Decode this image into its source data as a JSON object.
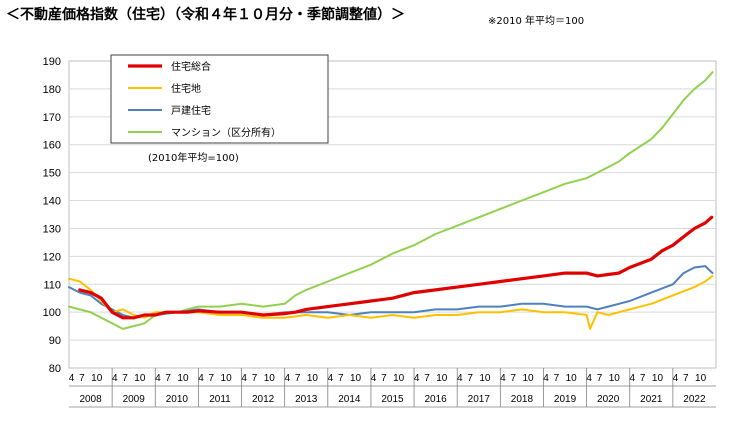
{
  "header": {
    "title": "＜不動産価格指数（住宅）（令和４年１０月分・季節調整値）＞",
    "note": "※2010 年平均＝100"
  },
  "chart_data": {
    "type": "line",
    "ylim": [
      80,
      190
    ],
    "yticks": [
      80,
      90,
      100,
      110,
      120,
      130,
      140,
      150,
      160,
      170,
      180,
      190
    ],
    "month_ticks": [
      "4",
      "7",
      "10"
    ],
    "first_year_month_ticks": [
      "4",
      "7",
      "10"
    ],
    "years": [
      "2008",
      "2009",
      "2010",
      "2011",
      "2012",
      "2013",
      "2014",
      "2015",
      "2016",
      "2017",
      "2018",
      "2019",
      "2020",
      "2021",
      "2022"
    ],
    "basis_note": "(2010年平均=100)",
    "grid": true,
    "legend_position": "top-left",
    "series": [
      {
        "name": "住宅総合",
        "color": "#e00000",
        "points": [
          [
            2008.25,
            108
          ],
          [
            2008.5,
            107
          ],
          [
            2008.75,
            105
          ],
          [
            2009.0,
            100
          ],
          [
            2009.25,
            98
          ],
          [
            2009.5,
            98
          ],
          [
            2009.75,
            99
          ],
          [
            2010.0,
            99
          ],
          [
            2010.25,
            100
          ],
          [
            2010.5,
            100
          ],
          [
            2010.75,
            100
          ],
          [
            2011.0,
            100.5
          ],
          [
            2011.5,
            100
          ],
          [
            2012.0,
            100
          ],
          [
            2012.5,
            99
          ],
          [
            2013.0,
            99.5
          ],
          [
            2013.25,
            100
          ],
          [
            2013.5,
            101
          ],
          [
            2014.0,
            102
          ],
          [
            2014.5,
            103
          ],
          [
            2015.0,
            104
          ],
          [
            2015.5,
            105
          ],
          [
            2016.0,
            107
          ],
          [
            2016.5,
            108
          ],
          [
            2017.0,
            109
          ],
          [
            2017.5,
            110
          ],
          [
            2018.0,
            111
          ],
          [
            2018.5,
            112
          ],
          [
            2019.0,
            113
          ],
          [
            2019.5,
            114
          ],
          [
            2020.0,
            114
          ],
          [
            2020.25,
            113
          ],
          [
            2020.5,
            113.5
          ],
          [
            2020.75,
            114
          ],
          [
            2021.0,
            116
          ],
          [
            2021.5,
            119
          ],
          [
            2021.75,
            122
          ],
          [
            2022.0,
            124
          ],
          [
            2022.25,
            127
          ],
          [
            2022.5,
            130
          ],
          [
            2022.75,
            132
          ],
          [
            2022.9,
            134
          ]
        ]
      },
      {
        "name": "住宅地",
        "color": "#ffc000",
        "points": [
          [
            2008.0,
            112
          ],
          [
            2008.25,
            111
          ],
          [
            2008.5,
            108
          ],
          [
            2008.75,
            104
          ],
          [
            2009.0,
            100
          ],
          [
            2009.25,
            101
          ],
          [
            2009.5,
            99
          ],
          [
            2009.75,
            98
          ],
          [
            2010.0,
            100
          ],
          [
            2010.5,
            100
          ],
          [
            2011.0,
            100
          ],
          [
            2011.5,
            99
          ],
          [
            2012.0,
            99
          ],
          [
            2012.5,
            98
          ],
          [
            2013.0,
            98
          ],
          [
            2013.5,
            99
          ],
          [
            2014.0,
            98
          ],
          [
            2014.5,
            99
          ],
          [
            2015.0,
            98
          ],
          [
            2015.5,
            99
          ],
          [
            2016.0,
            98
          ],
          [
            2016.5,
            99
          ],
          [
            2017.0,
            99
          ],
          [
            2017.5,
            100
          ],
          [
            2018.0,
            100
          ],
          [
            2018.5,
            101
          ],
          [
            2019.0,
            100
          ],
          [
            2019.5,
            100
          ],
          [
            2020.0,
            99
          ],
          [
            2020.08,
            94
          ],
          [
            2020.25,
            100
          ],
          [
            2020.5,
            99
          ],
          [
            2020.75,
            100
          ],
          [
            2021.0,
            101
          ],
          [
            2021.5,
            103
          ],
          [
            2022.0,
            106
          ],
          [
            2022.5,
            109
          ],
          [
            2022.75,
            111
          ],
          [
            2022.92,
            113
          ]
        ]
      },
      {
        "name": "戸建住宅",
        "color": "#4f81bd",
        "points": [
          [
            2008.0,
            109
          ],
          [
            2008.25,
            107
          ],
          [
            2008.5,
            106
          ],
          [
            2008.75,
            103
          ],
          [
            2009.0,
            101
          ],
          [
            2009.25,
            99
          ],
          [
            2009.5,
            98
          ],
          [
            2009.75,
            99
          ],
          [
            2010.0,
            99
          ],
          [
            2010.5,
            100
          ],
          [
            2011.0,
            101
          ],
          [
            2011.5,
            100
          ],
          [
            2012.0,
            100
          ],
          [
            2012.5,
            99
          ],
          [
            2013.0,
            100
          ],
          [
            2013.5,
            100
          ],
          [
            2014.0,
            100
          ],
          [
            2014.5,
            99
          ],
          [
            2015.0,
            100
          ],
          [
            2015.5,
            100
          ],
          [
            2016.0,
            100
          ],
          [
            2016.5,
            101
          ],
          [
            2017.0,
            101
          ],
          [
            2017.5,
            102
          ],
          [
            2018.0,
            102
          ],
          [
            2018.5,
            103
          ],
          [
            2019.0,
            103
          ],
          [
            2019.5,
            102
          ],
          [
            2020.0,
            102
          ],
          [
            2020.25,
            101
          ],
          [
            2020.5,
            102
          ],
          [
            2020.75,
            103
          ],
          [
            2021.0,
            104
          ],
          [
            2021.5,
            107
          ],
          [
            2022.0,
            110
          ],
          [
            2022.25,
            114
          ],
          [
            2022.5,
            116
          ],
          [
            2022.75,
            116.5
          ],
          [
            2022.92,
            114
          ]
        ]
      },
      {
        "name": "マンション（区分所有）",
        "color": "#92d050",
        "points": [
          [
            2008.0,
            102
          ],
          [
            2008.25,
            101
          ],
          [
            2008.5,
            100
          ],
          [
            2008.75,
            98
          ],
          [
            2009.0,
            96
          ],
          [
            2009.25,
            94
          ],
          [
            2009.5,
            95
          ],
          [
            2009.75,
            96
          ],
          [
            2010.0,
            99
          ],
          [
            2010.5,
            100
          ],
          [
            2011.0,
            102
          ],
          [
            2011.5,
            102
          ],
          [
            2012.0,
            103
          ],
          [
            2012.5,
            102
          ],
          [
            2013.0,
            103
          ],
          [
            2013.25,
            106
          ],
          [
            2013.5,
            108
          ],
          [
            2014.0,
            111
          ],
          [
            2014.5,
            114
          ],
          [
            2015.0,
            117
          ],
          [
            2015.5,
            121
          ],
          [
            2016.0,
            124
          ],
          [
            2016.5,
            128
          ],
          [
            2017.0,
            131
          ],
          [
            2017.5,
            134
          ],
          [
            2018.0,
            137
          ],
          [
            2018.5,
            140
          ],
          [
            2019.0,
            143
          ],
          [
            2019.5,
            146
          ],
          [
            2020.0,
            148
          ],
          [
            2020.25,
            150
          ],
          [
            2020.5,
            152
          ],
          [
            2020.75,
            154
          ],
          [
            2021.0,
            157
          ],
          [
            2021.5,
            162
          ],
          [
            2021.75,
            166
          ],
          [
            2022.0,
            171
          ],
          [
            2022.25,
            176
          ],
          [
            2022.5,
            180
          ],
          [
            2022.75,
            183
          ],
          [
            2022.92,
            186
          ]
        ]
      }
    ]
  }
}
